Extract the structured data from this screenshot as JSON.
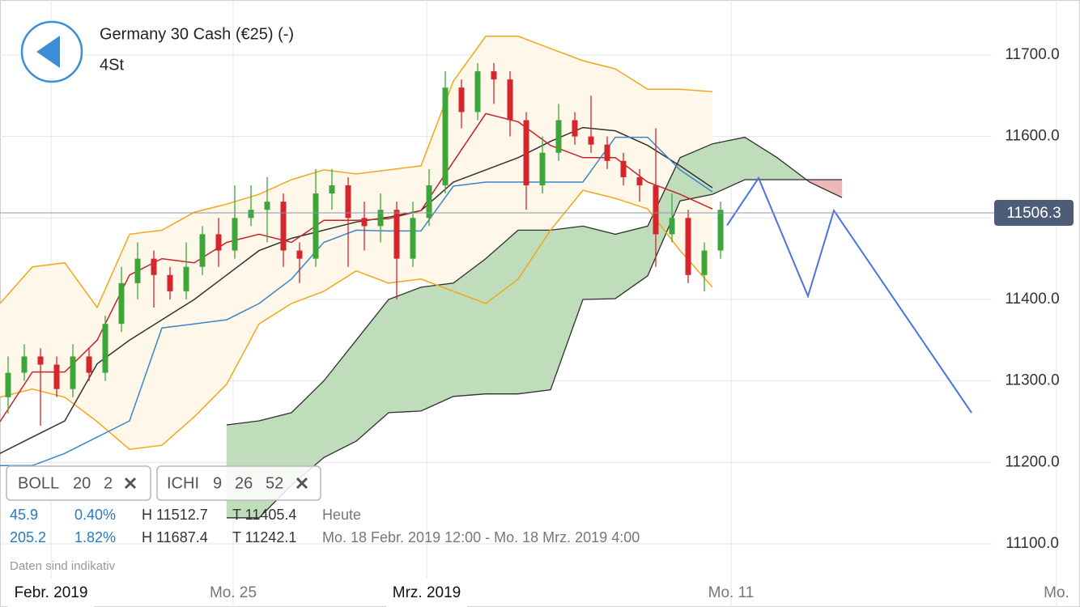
{
  "header": {
    "title": "Germany 30 Cash (€25) (-)",
    "timeframe": "4St"
  },
  "indicators": [
    {
      "name": "BOLL",
      "params": [
        "20",
        "2"
      ]
    },
    {
      "name": "ICHI",
      "params": [
        "9",
        "26",
        "52"
      ]
    }
  ],
  "stats": [
    {
      "change": "45.9",
      "change_pct": "0.40%",
      "high": "H 11512.7",
      "low": "T 11405.4",
      "period": "Heute"
    },
    {
      "change": "205.2",
      "change_pct": "1.82%",
      "high": "H 11687.4",
      "low": "T 11242.1",
      "period": "Mo. 18 Febr. 2019 12:00 - Mo. 18 Mrz. 2019 4:00"
    }
  ],
  "disclaimer": "Daten sind indikativ",
  "chart_data": {
    "type": "candlestick",
    "xlim": [
      0,
      133.4
    ],
    "ylim": [
      11022.5,
      11767.5
    ],
    "xticks": [
      {
        "value": 6.3,
        "label": "Febr. 2019"
      },
      {
        "value": 28.8,
        "label": "Mo. 25"
      },
      {
        "value": 52.7,
        "label": "Mrz. 2019"
      },
      {
        "value": 90.3,
        "label": "Mo. 11"
      },
      {
        "value": 130.5,
        "label": "Mo."
      }
    ],
    "yticks": [
      {
        "value": 11100,
        "label": "11100.0"
      },
      {
        "value": 11200,
        "label": "11200.0"
      },
      {
        "value": 11300,
        "label": "11300.0"
      },
      {
        "value": 11400,
        "label": "11400.0"
      },
      {
        "value": 11500,
        "label": "11500.0"
      },
      {
        "value": 11600,
        "label": "11600.0"
      },
      {
        "value": 11700,
        "label": "11700.0"
      }
    ],
    "grid": true,
    "up_color": "#3da63a",
    "down_color": "#d4262c",
    "candles": {
      "x": [
        1,
        3,
        5,
        7,
        9,
        11,
        13,
        15,
        17,
        19,
        21,
        23,
        25,
        27,
        29,
        31,
        33,
        35,
        37,
        39,
        41,
        43,
        45,
        47,
        49,
        51,
        53,
        55,
        57,
        59,
        61,
        63,
        65,
        67,
        69,
        71,
        73,
        75,
        77,
        79,
        81,
        83,
        85,
        87,
        89
      ],
      "open": [
        11280,
        11310,
        11330,
        11320,
        11290,
        11330,
        11310,
        11370,
        11420,
        11450,
        11430,
        11410,
        11440,
        11480,
        11460,
        11500,
        11510,
        11520,
        11460,
        11450,
        11530,
        11540,
        11500,
        11490,
        11510,
        11450,
        11500,
        11540,
        11660,
        11630,
        11680,
        11670,
        11620,
        11540,
        11580,
        11620,
        11600,
        11590,
        11570,
        11550,
        11540,
        11480,
        11500,
        11430,
        11460
      ],
      "high": [
        11330,
        11345,
        11340,
        11330,
        11345,
        11340,
        11380,
        11440,
        11470,
        11460,
        11440,
        11470,
        11490,
        11500,
        11540,
        11540,
        11550,
        11530,
        11470,
        11560,
        11560,
        11550,
        11520,
        11530,
        11520,
        11520,
        11560,
        11680,
        11670,
        11690,
        11690,
        11680,
        11630,
        11600,
        11640,
        11630,
        11650,
        11600,
        11580,
        11560,
        11610,
        11530,
        11510,
        11470,
        11520
      ],
      "low": [
        11260,
        11300,
        11245,
        11280,
        11280,
        11300,
        11300,
        11360,
        11400,
        11390,
        11400,
        11400,
        11430,
        11440,
        11450,
        11490,
        11470,
        11440,
        11420,
        11440,
        11510,
        11440,
        11460,
        11470,
        11400,
        11440,
        11490,
        11530,
        11610,
        11620,
        11640,
        11600,
        11510,
        11530,
        11570,
        11590,
        11580,
        11560,
        11540,
        11520,
        11440,
        11470,
        11420,
        11410,
        11450
      ],
      "close": [
        11310,
        11330,
        11320,
        11290,
        11330,
        11310,
        11370,
        11420,
        11450,
        11430,
        11410,
        11440,
        11480,
        11460,
        11500,
        11510,
        11520,
        11460,
        11450,
        11530,
        11540,
        11500,
        11490,
        11510,
        11450,
        11500,
        11540,
        11660,
        11630,
        11680,
        11670,
        11620,
        11540,
        11580,
        11620,
        11600,
        11590,
        11570,
        11550,
        11540,
        11480,
        11500,
        11430,
        11460,
        11510
      ]
    },
    "bands": {
      "x": [
        0,
        4,
        8,
        12,
        16,
        20,
        24,
        28,
        32,
        36,
        40,
        44,
        48,
        52,
        56,
        60,
        64,
        68,
        72,
        76,
        80,
        84,
        88
      ],
      "upper": [
        11395,
        11440,
        11445,
        11390,
        11480,
        11485,
        11507,
        11517,
        11529,
        11547,
        11559,
        11554,
        11559,
        11564,
        11668,
        11723,
        11723,
        11708,
        11693,
        11683,
        11658,
        11658,
        11655
      ],
      "middle": [
        11211,
        11231,
        11251,
        11321,
        11350,
        11375,
        11400,
        11430,
        11460,
        11475,
        11485,
        11495,
        11501,
        11509,
        11544,
        11559,
        11574,
        11594,
        11611,
        11607,
        11589,
        11564,
        11537
      ],
      "lower": [
        11280,
        11290,
        11280,
        11250,
        11216,
        11221,
        11256,
        11296,
        11370,
        11395,
        11410,
        11435,
        11420,
        11425,
        11410,
        11395,
        11425,
        11485,
        11534,
        11524,
        11511,
        11460,
        11415
      ],
      "color": "#f0a81a",
      "middle_color": "#333333",
      "fill": "#fef7ea"
    },
    "ichimoku": {
      "x": [
        0,
        4,
        8,
        12,
        16,
        20,
        24,
        28,
        32,
        36,
        40,
        44,
        48,
        52,
        56,
        60,
        64,
        68,
        72,
        76,
        80,
        84,
        88
      ],
      "tenkan": [
        11250,
        11311,
        11311,
        11350,
        11430,
        11450,
        11445,
        11470,
        11480,
        11470,
        11497,
        11497,
        11499,
        11509,
        11569,
        11628,
        11618,
        11589,
        11574,
        11574,
        11544,
        11529,
        11511
      ],
      "kijun": [
        11196,
        11196,
        11211,
        11231,
        11251,
        11365,
        11370,
        11375,
        11395,
        11425,
        11470,
        11485,
        11484,
        11484,
        11539,
        11544,
        11544,
        11544,
        11544,
        11599,
        11599,
        11559,
        11532
      ],
      "tenkan_color": "#c8232a",
      "kijun_color": "#3a86c8",
      "cloud_x": [
        28,
        32,
        36,
        40,
        44,
        48,
        52,
        56,
        60,
        64,
        68,
        72,
        76,
        80,
        84,
        88,
        92,
        96,
        100,
        104
      ],
      "span_a": [
        11246,
        11251,
        11261,
        11300,
        11350,
        11400,
        11415,
        11420,
        11450,
        11485,
        11485,
        11490,
        11480,
        11490,
        11574,
        11591,
        11599,
        11574,
        11544,
        11525
      ],
      "span_b": [
        11132,
        11132,
        11172,
        11206,
        11226,
        11261,
        11263,
        11281,
        11284,
        11284,
        11289,
        11400,
        11401,
        11429,
        11521,
        11529,
        11547,
        11547,
        11547,
        11547
      ],
      "cloud_up_color": "#bcdcb8",
      "cloud_down_color": "#edb5b5",
      "cloud_edge_color": "#2f2f2f"
    },
    "projection": {
      "x": [
        89.8,
        93.7,
        99.8,
        103,
        120
      ],
      "values": [
        11491,
        11549,
        11404,
        11509,
        11261
      ],
      "color": "#4b72e3"
    },
    "last_price": 11506.3,
    "last_price_color": "#4d5d78"
  }
}
